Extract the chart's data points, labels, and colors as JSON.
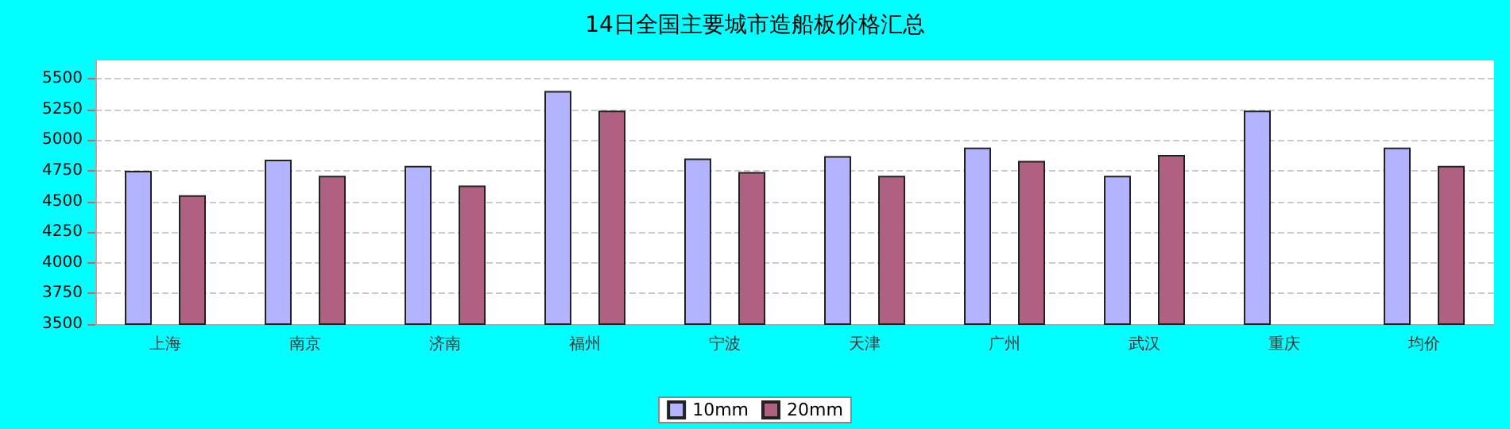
{
  "chart_data": {
    "type": "bar",
    "title": "14日全国主要城市造船板价格汇总",
    "categories": [
      "上海",
      "南京",
      "济南",
      "福州",
      "宁波",
      "天津",
      "广州",
      "武汉",
      "重庆",
      "均价"
    ],
    "series": [
      {
        "name": "10mm",
        "color": "#b3b3ff",
        "values": [
          4750,
          4840,
          4790,
          5400,
          4850,
          4870,
          4940,
          4710,
          5240,
          4940
        ]
      },
      {
        "name": "20mm",
        "color": "#b06080",
        "values": [
          4550,
          4710,
          4630,
          5240,
          4740,
          4710,
          4830,
          4880,
          null,
          4790
        ]
      }
    ],
    "ylim": [
      3500,
      5650
    ],
    "yticks": [
      3500,
      3750,
      4000,
      4250,
      4500,
      4750,
      5000,
      5250,
      5500
    ],
    "grid": "y",
    "legend": "bottom"
  }
}
